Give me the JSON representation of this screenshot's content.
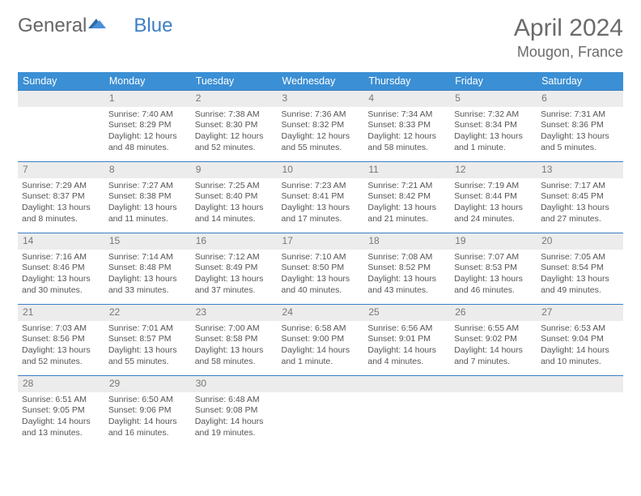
{
  "brand": {
    "part1": "General",
    "part2": "Blue"
  },
  "title": "April 2024",
  "location": "Mougon, France",
  "colors": {
    "header_bg": "#3b8fd4",
    "header_text": "#ffffff",
    "row_border": "#3b7fc4",
    "daynum_bg": "#ececec",
    "daynum_text": "#777777",
    "body_text": "#555555",
    "title_text": "#6b6b6b",
    "logo_gray": "#666666",
    "logo_blue": "#3b7fc4",
    "page_bg": "#ffffff"
  },
  "typography": {
    "title_fontsize": 30,
    "location_fontsize": 18,
    "header_fontsize": 12.5,
    "cell_fontsize": 10.5,
    "daynum_fontsize": 12
  },
  "weekdays": [
    "Sunday",
    "Monday",
    "Tuesday",
    "Wednesday",
    "Thursday",
    "Friday",
    "Saturday"
  ],
  "weeks": [
    [
      null,
      {
        "n": "1",
        "sr": "Sunrise: 7:40 AM",
        "ss": "Sunset: 8:29 PM",
        "dl1": "Daylight: 12 hours",
        "dl2": "and 48 minutes."
      },
      {
        "n": "2",
        "sr": "Sunrise: 7:38 AM",
        "ss": "Sunset: 8:30 PM",
        "dl1": "Daylight: 12 hours",
        "dl2": "and 52 minutes."
      },
      {
        "n": "3",
        "sr": "Sunrise: 7:36 AM",
        "ss": "Sunset: 8:32 PM",
        "dl1": "Daylight: 12 hours",
        "dl2": "and 55 minutes."
      },
      {
        "n": "4",
        "sr": "Sunrise: 7:34 AM",
        "ss": "Sunset: 8:33 PM",
        "dl1": "Daylight: 12 hours",
        "dl2": "and 58 minutes."
      },
      {
        "n": "5",
        "sr": "Sunrise: 7:32 AM",
        "ss": "Sunset: 8:34 PM",
        "dl1": "Daylight: 13 hours",
        "dl2": "and 1 minute."
      },
      {
        "n": "6",
        "sr": "Sunrise: 7:31 AM",
        "ss": "Sunset: 8:36 PM",
        "dl1": "Daylight: 13 hours",
        "dl2": "and 5 minutes."
      }
    ],
    [
      {
        "n": "7",
        "sr": "Sunrise: 7:29 AM",
        "ss": "Sunset: 8:37 PM",
        "dl1": "Daylight: 13 hours",
        "dl2": "and 8 minutes."
      },
      {
        "n": "8",
        "sr": "Sunrise: 7:27 AM",
        "ss": "Sunset: 8:38 PM",
        "dl1": "Daylight: 13 hours",
        "dl2": "and 11 minutes."
      },
      {
        "n": "9",
        "sr": "Sunrise: 7:25 AM",
        "ss": "Sunset: 8:40 PM",
        "dl1": "Daylight: 13 hours",
        "dl2": "and 14 minutes."
      },
      {
        "n": "10",
        "sr": "Sunrise: 7:23 AM",
        "ss": "Sunset: 8:41 PM",
        "dl1": "Daylight: 13 hours",
        "dl2": "and 17 minutes."
      },
      {
        "n": "11",
        "sr": "Sunrise: 7:21 AM",
        "ss": "Sunset: 8:42 PM",
        "dl1": "Daylight: 13 hours",
        "dl2": "and 21 minutes."
      },
      {
        "n": "12",
        "sr": "Sunrise: 7:19 AM",
        "ss": "Sunset: 8:44 PM",
        "dl1": "Daylight: 13 hours",
        "dl2": "and 24 minutes."
      },
      {
        "n": "13",
        "sr": "Sunrise: 7:17 AM",
        "ss": "Sunset: 8:45 PM",
        "dl1": "Daylight: 13 hours",
        "dl2": "and 27 minutes."
      }
    ],
    [
      {
        "n": "14",
        "sr": "Sunrise: 7:16 AM",
        "ss": "Sunset: 8:46 PM",
        "dl1": "Daylight: 13 hours",
        "dl2": "and 30 minutes."
      },
      {
        "n": "15",
        "sr": "Sunrise: 7:14 AM",
        "ss": "Sunset: 8:48 PM",
        "dl1": "Daylight: 13 hours",
        "dl2": "and 33 minutes."
      },
      {
        "n": "16",
        "sr": "Sunrise: 7:12 AM",
        "ss": "Sunset: 8:49 PM",
        "dl1": "Daylight: 13 hours",
        "dl2": "and 37 minutes."
      },
      {
        "n": "17",
        "sr": "Sunrise: 7:10 AM",
        "ss": "Sunset: 8:50 PM",
        "dl1": "Daylight: 13 hours",
        "dl2": "and 40 minutes."
      },
      {
        "n": "18",
        "sr": "Sunrise: 7:08 AM",
        "ss": "Sunset: 8:52 PM",
        "dl1": "Daylight: 13 hours",
        "dl2": "and 43 minutes."
      },
      {
        "n": "19",
        "sr": "Sunrise: 7:07 AM",
        "ss": "Sunset: 8:53 PM",
        "dl1": "Daylight: 13 hours",
        "dl2": "and 46 minutes."
      },
      {
        "n": "20",
        "sr": "Sunrise: 7:05 AM",
        "ss": "Sunset: 8:54 PM",
        "dl1": "Daylight: 13 hours",
        "dl2": "and 49 minutes."
      }
    ],
    [
      {
        "n": "21",
        "sr": "Sunrise: 7:03 AM",
        "ss": "Sunset: 8:56 PM",
        "dl1": "Daylight: 13 hours",
        "dl2": "and 52 minutes."
      },
      {
        "n": "22",
        "sr": "Sunrise: 7:01 AM",
        "ss": "Sunset: 8:57 PM",
        "dl1": "Daylight: 13 hours",
        "dl2": "and 55 minutes."
      },
      {
        "n": "23",
        "sr": "Sunrise: 7:00 AM",
        "ss": "Sunset: 8:58 PM",
        "dl1": "Daylight: 13 hours",
        "dl2": "and 58 minutes."
      },
      {
        "n": "24",
        "sr": "Sunrise: 6:58 AM",
        "ss": "Sunset: 9:00 PM",
        "dl1": "Daylight: 14 hours",
        "dl2": "and 1 minute."
      },
      {
        "n": "25",
        "sr": "Sunrise: 6:56 AM",
        "ss": "Sunset: 9:01 PM",
        "dl1": "Daylight: 14 hours",
        "dl2": "and 4 minutes."
      },
      {
        "n": "26",
        "sr": "Sunrise: 6:55 AM",
        "ss": "Sunset: 9:02 PM",
        "dl1": "Daylight: 14 hours",
        "dl2": "and 7 minutes."
      },
      {
        "n": "27",
        "sr": "Sunrise: 6:53 AM",
        "ss": "Sunset: 9:04 PM",
        "dl1": "Daylight: 14 hours",
        "dl2": "and 10 minutes."
      }
    ],
    [
      {
        "n": "28",
        "sr": "Sunrise: 6:51 AM",
        "ss": "Sunset: 9:05 PM",
        "dl1": "Daylight: 14 hours",
        "dl2": "and 13 minutes."
      },
      {
        "n": "29",
        "sr": "Sunrise: 6:50 AM",
        "ss": "Sunset: 9:06 PM",
        "dl1": "Daylight: 14 hours",
        "dl2": "and 16 minutes."
      },
      {
        "n": "30",
        "sr": "Sunrise: 6:48 AM",
        "ss": "Sunset: 9:08 PM",
        "dl1": "Daylight: 14 hours",
        "dl2": "and 19 minutes."
      },
      null,
      null,
      null,
      null
    ]
  ]
}
